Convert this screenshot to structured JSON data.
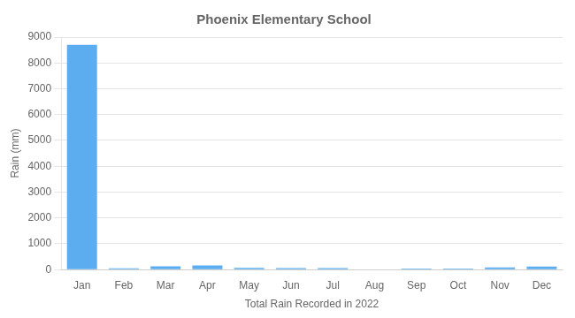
{
  "chart_data": {
    "type": "bar",
    "title": "Phoenix Elementary School",
    "xlabel": "Total Rain Recorded in 2022",
    "ylabel": "Rain (mm)",
    "categories": [
      "Jan",
      "Feb",
      "Mar",
      "Apr",
      "May",
      "Jun",
      "Jul",
      "Aug",
      "Sep",
      "Oct",
      "Nov",
      "Dec"
    ],
    "values": [
      8700,
      50,
      130,
      160,
      70,
      55,
      60,
      0,
      40,
      40,
      80,
      120
    ],
    "color": "#5BADF0",
    "ylim": [
      0,
      9000
    ],
    "yticks": [
      0,
      1000,
      2000,
      3000,
      4000,
      5000,
      6000,
      7000,
      8000,
      9000
    ],
    "grid": true
  }
}
